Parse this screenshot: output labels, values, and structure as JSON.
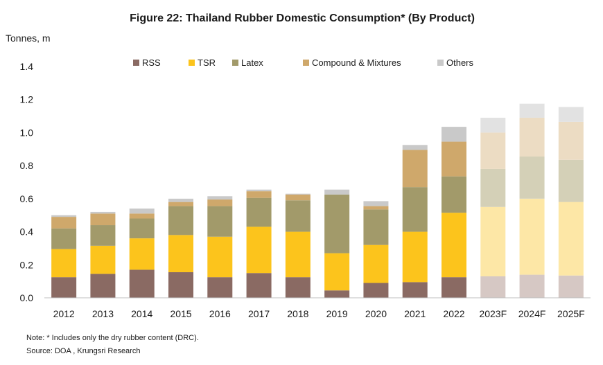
{
  "chart_data": {
    "type": "bar",
    "stacked": true,
    "title": "Figure 22: Thailand  Rubber Domestic Consumption*  (By Product)",
    "ylabel": "Tonnes, m",
    "ylim": [
      0,
      1.4
    ],
    "yticks": [
      "0.0",
      "0.2",
      "0.4",
      "0.6",
      "0.8",
      "1.0",
      "1.2",
      "1.4"
    ],
    "grid": false,
    "legend_position": "top",
    "categories": [
      "2012",
      "2013",
      "2014",
      "2015",
      "2016",
      "2017",
      "2018",
      "2019",
      "2020",
      "2021",
      "2022",
      "2023F",
      "2024F",
      "2025F"
    ],
    "forecast_from_index": 11,
    "series": [
      {
        "name": "RSS",
        "color": "#8a6a63",
        "forecast_color": "#d6c8c4",
        "values": [
          0.125,
          0.145,
          0.17,
          0.155,
          0.125,
          0.15,
          0.125,
          0.045,
          0.09,
          0.095,
          0.125,
          0.13,
          0.14,
          0.135
        ]
      },
      {
        "name": "TSR",
        "color": "#fcc41c",
        "forecast_color": "#fde7a6",
        "values": [
          0.17,
          0.17,
          0.19,
          0.225,
          0.245,
          0.28,
          0.275,
          0.225,
          0.23,
          0.305,
          0.39,
          0.42,
          0.46,
          0.445
        ]
      },
      {
        "name": "Latex",
        "color": "#a29a6a",
        "forecast_color": "#d4d0b7",
        "values": [
          0.125,
          0.125,
          0.12,
          0.175,
          0.185,
          0.175,
          0.19,
          0.355,
          0.215,
          0.27,
          0.22,
          0.23,
          0.255,
          0.255
        ]
      },
      {
        "name": "Compound & Mixtures",
        "color": "#cfa86b",
        "forecast_color": "#ecdcc3",
        "values": [
          0.07,
          0.07,
          0.03,
          0.025,
          0.04,
          0.04,
          0.035,
          0.0,
          0.02,
          0.225,
          0.21,
          0.22,
          0.235,
          0.23
        ]
      },
      {
        "name": "Others",
        "color": "#c9c9c9",
        "forecast_color": "#e2e2e2",
        "values": [
          0.01,
          0.01,
          0.03,
          0.02,
          0.02,
          0.01,
          0.005,
          0.03,
          0.03,
          0.03,
          0.09,
          0.09,
          0.085,
          0.09
        ]
      }
    ]
  },
  "notes": {
    "note": "Note:   * Includes only the dry rubber content (DRC).",
    "source": "Source: DOA , Krungsri Research"
  }
}
